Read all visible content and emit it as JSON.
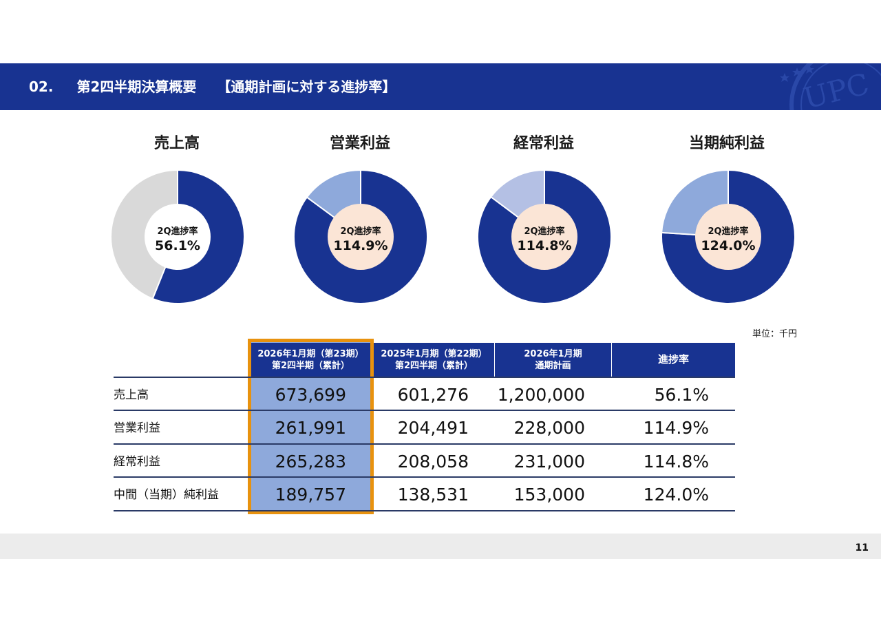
{
  "header": {
    "section_number": "02.",
    "title": "第2四半期決算概要",
    "subtitle": "【通期計画に対する進捗率】",
    "emblem_text": "UPC"
  },
  "chart_data": [
    {
      "type": "pie",
      "title": "売上高",
      "center_label": "2Q進捗率",
      "center_value": "56.1%",
      "progress": 56.1,
      "values": [
        56.1,
        43.9
      ],
      "colors": [
        "#183391",
        "#D9D9D9"
      ],
      "center_color": "#FFFFFF"
    },
    {
      "type": "pie",
      "title": "営業利益",
      "center_label": "2Q進捗率",
      "center_value": "114.9%",
      "progress": 114.9,
      "values": [
        85.1,
        14.9
      ],
      "colors": [
        "#183391",
        "#8EA9DB"
      ],
      "center_color": "#FBE5D6"
    },
    {
      "type": "pie",
      "title": "経常利益",
      "center_label": "2Q進捗率",
      "center_value": "114.8%",
      "progress": 114.8,
      "values": [
        85.2,
        14.8
      ],
      "colors": [
        "#183391",
        "#B4C0E4"
      ],
      "center_color": "#FBE5D6"
    },
    {
      "type": "pie",
      "title": "当期純利益",
      "center_label": "2Q進捗率",
      "center_value": "124.0%",
      "progress": 124.0,
      "values": [
        76.0,
        24.0
      ],
      "colors": [
        "#183391",
        "#8EA9DB"
      ],
      "center_color": "#FBE5D6"
    }
  ],
  "table": {
    "unit_note": "単位：千円",
    "headers": [
      {
        "line1": "2026年1月期（第23期）",
        "line2": "第2四半期（累計）"
      },
      {
        "line1": "2025年1月期（第22期）",
        "line2": "第2四半期（累計）"
      },
      {
        "line1": "2026年1月期",
        "line2": "通期計画"
      },
      {
        "line1": "進捗率",
        "line2": ""
      }
    ],
    "rows": [
      {
        "label": "売上高",
        "cells": [
          "673,699",
          "601,276",
          "1,200,000",
          "56.1%"
        ]
      },
      {
        "label": "営業利益",
        "cells": [
          "261,991",
          "204,491",
          "228,000",
          "114.9%"
        ]
      },
      {
        "label": "経常利益",
        "cells": [
          "265,283",
          "208,058",
          "231,000",
          "114.8%"
        ]
      },
      {
        "label": "中間（当期）純利益",
        "cells": [
          "189,757",
          "138,531",
          "153,000",
          "124.0%"
        ]
      }
    ]
  },
  "footer": {
    "page_number": "11"
  },
  "colors": {
    "brand_navy": "#183391",
    "highlight_border": "#E8920E",
    "highlight_fill": "#8EA9DB",
    "footer_gray": "#ECECEC"
  }
}
